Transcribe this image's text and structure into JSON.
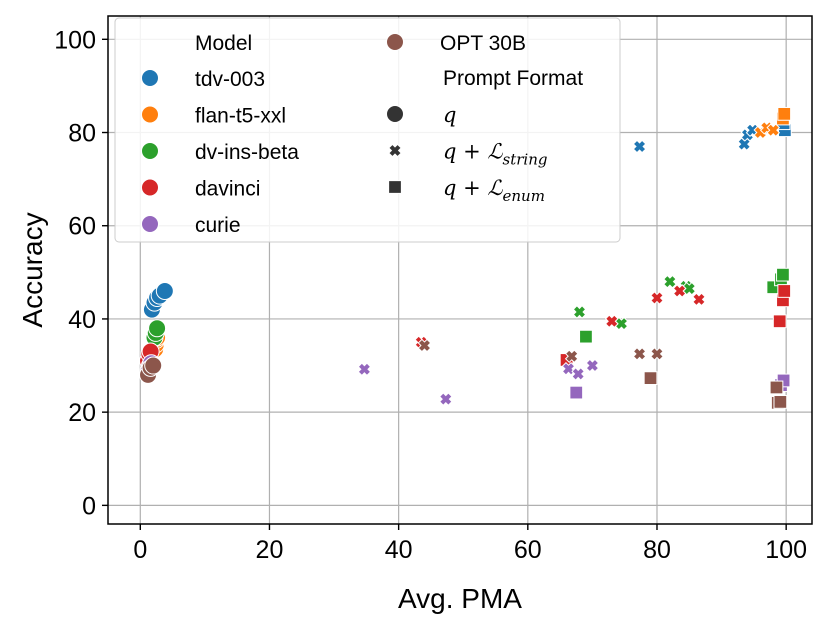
{
  "chart_data": {
    "type": "scatter",
    "title": "",
    "xlabel": "Avg. PMA",
    "ylabel": "Accuracy",
    "xlim": [
      -5,
      104
    ],
    "ylim": [
      -4,
      105
    ],
    "xticks": [
      "0",
      "20",
      "40",
      "60",
      "80",
      "100"
    ],
    "yticks": [
      "0",
      "20",
      "40",
      "60",
      "80",
      "100"
    ],
    "xtick_values": [
      0,
      20,
      40,
      60,
      80,
      100
    ],
    "ytick_values": [
      0,
      20,
      40,
      60,
      80,
      100
    ],
    "grid": true,
    "legend_position": "top-left",
    "legend": {
      "model_header": "Model",
      "format_header": "Prompt Format",
      "models": [
        {
          "name": "tdv-003",
          "color": "#1f77b4"
        },
        {
          "name": "flan-t5-xxl",
          "color": "#ff7f0e"
        },
        {
          "name": "dv-ins-beta",
          "color": "#2ca02c"
        },
        {
          "name": "davinci",
          "color": "#d62728"
        },
        {
          "name": "curie",
          "color": "#9467bd"
        },
        {
          "name": "OPT 30B",
          "color": "#8c564b"
        }
      ],
      "formats": [
        {
          "marker": "circle",
          "label": "q",
          "sub": ""
        },
        {
          "marker": "x",
          "label": "q + ℒ",
          "sub": "string"
        },
        {
          "marker": "square",
          "label": "q + ℒ",
          "sub": "enum"
        }
      ]
    },
    "series": [
      {
        "model": "tdv-003",
        "format": "q",
        "marker": "circle",
        "color": "#1f77b4",
        "points": [
          [
            1.8,
            42
          ],
          [
            2.2,
            43.5
          ],
          [
            2.6,
            44.5
          ],
          [
            3.0,
            45
          ],
          [
            3.8,
            46
          ]
        ]
      },
      {
        "model": "tdv-003",
        "format": "q + L_string",
        "marker": "x",
        "color": "#1f77b4",
        "points": [
          [
            93.5,
            77.5
          ],
          [
            94,
            79.5
          ],
          [
            94.8,
            80.5
          ],
          [
            77.3,
            77
          ]
        ]
      },
      {
        "model": "tdv-003",
        "format": "q + L_enum",
        "marker": "square",
        "color": "#1f77b4",
        "points": [
          [
            99.8,
            80.5
          ],
          [
            99.6,
            82
          ]
        ]
      },
      {
        "model": "flan-t5-xxl",
        "format": "q",
        "marker": "circle",
        "color": "#ff7f0e",
        "points": [
          [
            2.3,
            33.5
          ],
          [
            2.4,
            34.5
          ],
          [
            2.5,
            35.5
          ],
          [
            2.6,
            36
          ]
        ]
      },
      {
        "model": "flan-t5-xxl",
        "format": "q + L_string",
        "marker": "x",
        "color": "#ff7f0e",
        "points": [
          [
            96,
            80
          ],
          [
            97,
            81
          ],
          [
            98,
            80.5
          ]
        ]
      },
      {
        "model": "flan-t5-xxl",
        "format": "q + L_enum",
        "marker": "square",
        "color": "#ff7f0e",
        "points": [
          [
            99.5,
            83
          ],
          [
            99.7,
            84
          ]
        ]
      },
      {
        "model": "dv-ins-beta",
        "format": "q",
        "marker": "circle",
        "color": "#2ca02c",
        "points": [
          [
            2.2,
            36
          ],
          [
            2.4,
            37
          ],
          [
            2.6,
            38
          ]
        ]
      },
      {
        "model": "dv-ins-beta",
        "format": "q + L_string",
        "marker": "x",
        "color": "#2ca02c",
        "points": [
          [
            68,
            41.5
          ],
          [
            74.5,
            39
          ],
          [
            82,
            48
          ],
          [
            84.5,
            47
          ],
          [
            85,
            46.5
          ]
        ]
      },
      {
        "model": "dv-ins-beta",
        "format": "q + L_enum",
        "marker": "square",
        "color": "#2ca02c",
        "points": [
          [
            69,
            36.2
          ],
          [
            98,
            46.8
          ],
          [
            99.2,
            48.5
          ],
          [
            99.5,
            49.5
          ]
        ]
      },
      {
        "model": "davinci",
        "format": "q",
        "marker": "circle",
        "color": "#d62728",
        "points": [
          [
            1.2,
            31
          ],
          [
            1.4,
            32.5
          ],
          [
            1.6,
            33
          ]
        ]
      },
      {
        "model": "davinci",
        "format": "q + L_string",
        "marker": "x",
        "color": "#d62728",
        "points": [
          [
            43.5,
            35
          ],
          [
            73,
            39.5
          ],
          [
            80,
            44.5
          ],
          [
            83.5,
            46
          ],
          [
            86.5,
            44.2
          ]
        ]
      },
      {
        "model": "davinci",
        "format": "q + L_enum",
        "marker": "square",
        "color": "#d62728",
        "points": [
          [
            66,
            31.2
          ],
          [
            99,
            39.5
          ],
          [
            99.5,
            44
          ],
          [
            99.7,
            46
          ]
        ]
      },
      {
        "model": "curie",
        "format": "q",
        "marker": "circle",
        "color": "#9467bd",
        "points": [
          [
            1.3,
            29
          ],
          [
            1.5,
            30
          ],
          [
            1.7,
            30.5
          ]
        ]
      },
      {
        "model": "curie",
        "format": "q + L_string",
        "marker": "x",
        "color": "#9467bd",
        "points": [
          [
            34.7,
            29.2
          ],
          [
            47.3,
            22.8
          ],
          [
            66.3,
            29.3
          ],
          [
            67.8,
            28.2
          ],
          [
            70,
            30
          ]
        ]
      },
      {
        "model": "curie",
        "format": "q + L_enum",
        "marker": "square",
        "color": "#9467bd",
        "points": [
          [
            67.5,
            24.2
          ],
          [
            99.2,
            25.8
          ],
          [
            99.6,
            26.8
          ]
        ]
      },
      {
        "model": "OPT 30B",
        "format": "q",
        "marker": "circle",
        "color": "#8c564b",
        "points": [
          [
            1.2,
            28
          ],
          [
            1.6,
            29.5
          ],
          [
            2.0,
            30
          ]
        ]
      },
      {
        "model": "OPT 30B",
        "format": "q + L_string",
        "marker": "x",
        "color": "#8c564b",
        "points": [
          [
            44,
            34.3
          ],
          [
            66.8,
            32
          ],
          [
            77.3,
            32.5
          ],
          [
            80,
            32.5
          ]
        ]
      },
      {
        "model": "OPT 30B",
        "format": "q + L_enum",
        "marker": "square",
        "color": "#8c564b",
        "points": [
          [
            79,
            27.3
          ],
          [
            98.5,
            25.3
          ],
          [
            98.7,
            22
          ],
          [
            99.1,
            22.2
          ]
        ]
      }
    ]
  }
}
